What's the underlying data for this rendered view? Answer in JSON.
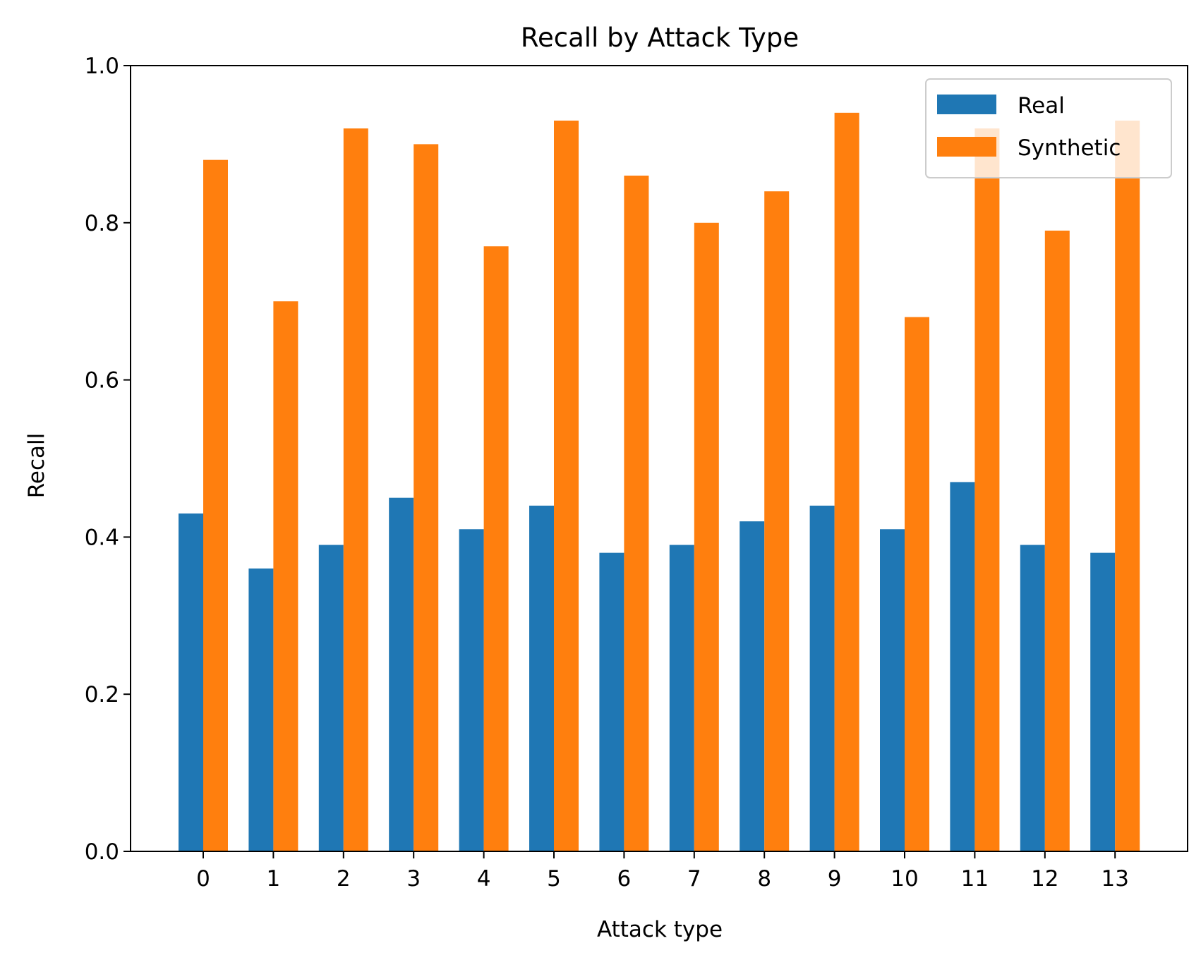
{
  "chart_data": {
    "type": "bar",
    "title": "Recall by Attack Type",
    "xlabel": "Attack type",
    "ylabel": "Recall",
    "ylim": [
      0,
      1.0
    ],
    "yticks": [
      "0.0",
      "0.2",
      "0.4",
      "0.6",
      "0.8",
      "1.0"
    ],
    "categories": [
      "0",
      "1",
      "2",
      "3",
      "4",
      "5",
      "6",
      "7",
      "8",
      "9",
      "10",
      "11",
      "12",
      "13"
    ],
    "series": [
      {
        "name": "Real",
        "color": "#1f77b4",
        "values": [
          0.43,
          0.36,
          0.39,
          0.45,
          0.41,
          0.44,
          0.38,
          0.39,
          0.42,
          0.44,
          0.41,
          0.47,
          0.39,
          0.38
        ]
      },
      {
        "name": "Synthetic",
        "color": "#ff7f0e",
        "values": [
          0.88,
          0.7,
          0.92,
          0.9,
          0.77,
          0.93,
          0.86,
          0.8,
          0.84,
          0.94,
          0.68,
          0.92,
          0.79,
          0.93
        ]
      }
    ],
    "legend_position": "top-right",
    "grid": false
  }
}
